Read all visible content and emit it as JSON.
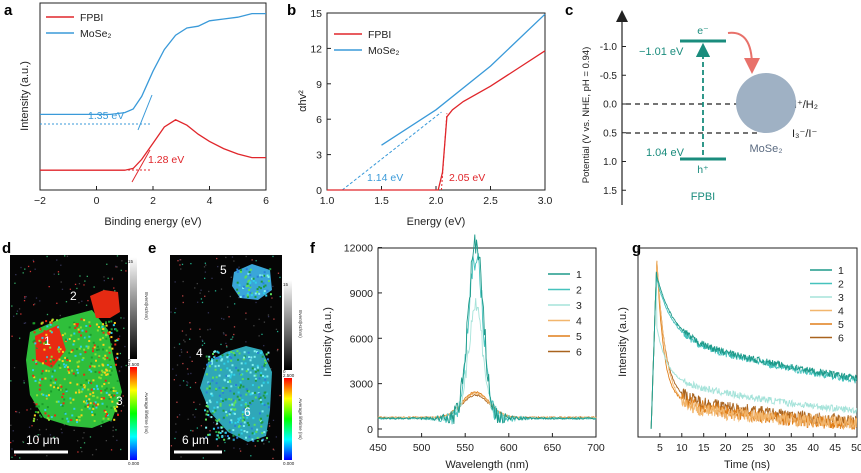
{
  "panels": {
    "a": "a",
    "b": "b",
    "c": "c",
    "d": "d",
    "e": "e",
    "f": "f",
    "g": "g"
  },
  "colors": {
    "fpbi": "#e0262b",
    "mose2": "#3a9ad9",
    "teal": "#1a8c7d",
    "circle": "#9fb1c4",
    "arrow": "#e8716a"
  },
  "chart_data": [
    {
      "id": "a",
      "type": "line",
      "title": "",
      "xlabel": "Binding energy (eV)",
      "ylabel": "Intensity (a.u.)",
      "xlim": [
        -2,
        6
      ],
      "xticks": [
        "−2",
        "0",
        "2",
        "4",
        "6"
      ],
      "legend": [
        "FPBI",
        "MoSe₂"
      ],
      "series": [
        {
          "name": "MoSe2",
          "x": [
            -2,
            -1,
            0,
            0.5,
            1,
            1.3,
            1.6,
            2.0,
            2.4,
            2.8,
            3.2,
            3.6,
            4.0,
            4.5,
            5.0,
            5.5,
            6.0
          ],
          "y": [
            0.42,
            0.42,
            0.42,
            0.42,
            0.43,
            0.45,
            0.52,
            0.66,
            0.78,
            0.86,
            0.9,
            0.91,
            0.94,
            0.95,
            0.96,
            0.98,
            0.98
          ]
        },
        {
          "name": "FPBI",
          "x": [
            -2,
            -1,
            0,
            0.5,
            1,
            1.3,
            1.6,
            2.0,
            2.4,
            2.8,
            3.2,
            3.6,
            4.0,
            4.5,
            5.0,
            5.5,
            6.0
          ],
          "y": [
            0.11,
            0.11,
            0.11,
            0.11,
            0.11,
            0.12,
            0.17,
            0.26,
            0.35,
            0.39,
            0.36,
            0.31,
            0.27,
            0.23,
            0.2,
            0.18,
            0.18
          ]
        }
      ],
      "annotations": [
        "1.35 eV",
        "1.28 eV"
      ]
    },
    {
      "id": "b",
      "type": "line",
      "title": "",
      "xlabel": "Energy (eV)",
      "ylabel": "αhv²",
      "xlim": [
        1.0,
        3.0
      ],
      "ylim": [
        0,
        15
      ],
      "xticks": [
        "1.0",
        "1.5",
        "2.0",
        "2.5",
        "3.0"
      ],
      "yticks": [
        "0",
        "3",
        "6",
        "9",
        "12",
        "15"
      ],
      "legend": [
        "FPBI",
        "MoSe₂"
      ],
      "series": [
        {
          "name": "MoSe2",
          "x": [
            1.5,
            2.0,
            2.5,
            3.0
          ],
          "y": [
            3.8,
            6.8,
            10.5,
            14.9
          ]
        },
        {
          "name": "FPBI",
          "x": [
            1.0,
            2.02,
            2.06,
            2.1,
            2.15,
            2.25,
            2.5,
            2.75,
            3.0
          ],
          "y": [
            0,
            0,
            1.5,
            6.2,
            6.8,
            7.5,
            8.8,
            10.3,
            11.8
          ]
        }
      ],
      "annotations": [
        "1.14 eV",
        "2.05 eV"
      ]
    },
    {
      "id": "c",
      "type": "diagram",
      "ylabel": "Potential  (V vs. NHE, pH = 0.94)",
      "yticks": [
        "-1.0",
        "-0.5",
        "0.0",
        "0.5",
        "1.0",
        "1.5"
      ],
      "levels": {
        "cb": "−1.01 eV",
        "vb": "1.04 eV",
        "h2": "H⁺/H₂",
        "i3": "I₃⁻/I⁻"
      },
      "carriers": {
        "e": "e⁻",
        "h": "h⁺"
      },
      "materials": {
        "fpbi": "FPBI",
        "mose2": "MoSe₂"
      }
    },
    {
      "id": "f",
      "type": "line",
      "xlabel": "Wavelength (nm)",
      "ylabel": "Intensity (a.u.)",
      "xlim": [
        450,
        700
      ],
      "ylim": [
        0,
        12000
      ],
      "xticks": [
        "450",
        "500",
        "550",
        "600",
        "650",
        "700"
      ],
      "yticks": [
        "0",
        "3000",
        "6000",
        "9000",
        "12000"
      ],
      "legend": [
        "1",
        "2",
        "3",
        "4",
        "5",
        "6"
      ],
      "peaks": [
        11500,
        10800,
        7500,
        1600,
        1700,
        1500
      ]
    },
    {
      "id": "g",
      "type": "line",
      "xlabel": "Time (ns)",
      "ylabel": "Intensity (a.u.)",
      "xlim": [
        0,
        50
      ],
      "xticks": [
        "5",
        "10",
        "15",
        "20",
        "25",
        "30",
        "35",
        "40",
        "45",
        "50"
      ],
      "legend": [
        "1",
        "2",
        "3",
        "4",
        "5",
        "6"
      ]
    }
  ],
  "maps": {
    "d": {
      "labels": [
        "1",
        "2",
        "3"
      ],
      "scalebar": "10 μm",
      "cbar_top": {
        "max": "15",
        "min": "0",
        "title": "Event(Hz/nm)"
      },
      "cbar_bottom": {
        "max": "2.500",
        "min": "0.000",
        "title": "Average lifetime (ns)"
      }
    },
    "e": {
      "labels": [
        "4",
        "5",
        "6"
      ],
      "scalebar": "6 μm",
      "cbar_top": {
        "max": "15",
        "min": "0",
        "title": "Event(Hz/nm)"
      },
      "cbar_bottom": {
        "max": "2.500",
        "min": "0.000",
        "title": "Average lifetime (ns)"
      }
    }
  }
}
